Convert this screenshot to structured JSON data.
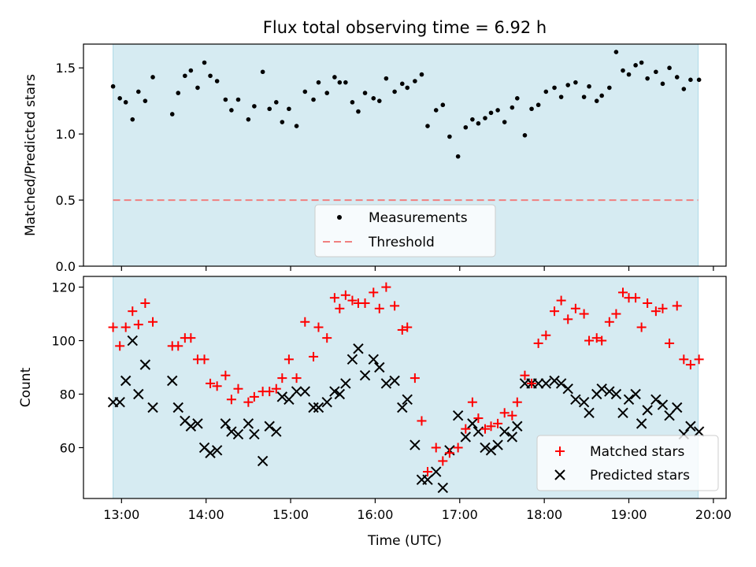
{
  "figure": {
    "title": "Flux total observing time = 6.92 h",
    "colors": {
      "band": "#add8e6",
      "measurement": "#000000",
      "threshold": "#f08080",
      "matched": "#ff0000",
      "predicted": "#000000"
    }
  },
  "chart_data": [
    {
      "type": "scatter",
      "title": "Flux total observing time = 6.92 h",
      "xlabel": "",
      "ylabel": "Matched/Predicted stars",
      "x_unit": "hours UTC",
      "xlim": [
        12.55,
        20.15
      ],
      "ylim": [
        0.0,
        1.68
      ],
      "yticks": [
        0.0,
        0.5,
        1.0,
        1.5
      ],
      "ytick_labels": [
        "0.0",
        "0.5",
        "1.0",
        "1.5"
      ],
      "shaded_span": [
        12.9,
        19.82
      ],
      "legend": {
        "placement": "lower center",
        "entries": [
          "Measurements",
          "Threshold"
        ]
      },
      "threshold": {
        "name": "Threshold",
        "value": 0.5,
        "x_range": [
          12.9,
          19.82
        ]
      },
      "series": [
        {
          "name": "Measurements",
          "marker": "dot",
          "x": [
            12.9,
            12.98,
            13.05,
            13.13,
            13.2,
            13.28,
            13.37,
            13.6,
            13.67,
            13.75,
            13.82,
            13.9,
            13.98,
            14.05,
            14.13,
            14.23,
            14.3,
            14.38,
            14.5,
            14.57,
            14.67,
            14.75,
            14.83,
            14.9,
            14.98,
            15.07,
            15.17,
            15.27,
            15.33,
            15.43,
            15.52,
            15.58,
            15.65,
            15.73,
            15.8,
            15.88,
            15.98,
            16.05,
            16.13,
            16.23,
            16.32,
            16.38,
            16.47,
            16.55,
            16.62,
            16.72,
            16.8,
            16.88,
            16.98,
            17.07,
            17.15,
            17.22,
            17.3,
            17.37,
            17.45,
            17.53,
            17.62,
            17.68,
            17.77,
            17.85,
            17.93,
            18.02,
            18.12,
            18.2,
            18.28,
            18.37,
            18.47,
            18.53,
            18.62,
            18.68,
            18.77,
            18.85,
            18.93,
            19.0,
            19.08,
            19.15,
            19.22,
            19.32,
            19.4,
            19.48,
            19.57,
            19.65,
            19.73,
            19.83
          ],
          "y": [
            1.36,
            1.27,
            1.24,
            1.11,
            1.32,
            1.25,
            1.43,
            1.15,
            1.31,
            1.44,
            1.48,
            1.35,
            1.54,
            1.44,
            1.4,
            1.26,
            1.18,
            1.26,
            1.11,
            1.21,
            1.47,
            1.19,
            1.24,
            1.09,
            1.19,
            1.06,
            1.32,
            1.26,
            1.39,
            1.31,
            1.43,
            1.39,
            1.39,
            1.24,
            1.17,
            1.31,
            1.27,
            1.25,
            1.42,
            1.32,
            1.38,
            1.35,
            1.4,
            1.45,
            1.06,
            1.18,
            1.22,
            0.98,
            0.83,
            1.05,
            1.11,
            1.08,
            1.12,
            1.16,
            1.18,
            1.09,
            1.2,
            1.27,
            0.99,
            1.19,
            1.22,
            1.32,
            1.35,
            1.28,
            1.37,
            1.39,
            1.28,
            1.36,
            1.25,
            1.29,
            1.35,
            1.62,
            1.48,
            1.45,
            1.52,
            1.54,
            1.42,
            1.47,
            1.38,
            1.5,
            1.43,
            1.34,
            1.41,
            1.41
          ]
        }
      ]
    },
    {
      "type": "scatter",
      "xlabel": "Time (UTC)",
      "ylabel": "Count",
      "x_unit": "hours UTC",
      "xlim": [
        12.55,
        20.15
      ],
      "ylim": [
        41.0,
        124.0
      ],
      "xticks": [
        13,
        14,
        15,
        16,
        17,
        18,
        19,
        20
      ],
      "xtick_labels": [
        "13:00",
        "14:00",
        "15:00",
        "16:00",
        "17:00",
        "18:00",
        "19:00",
        "20:00"
      ],
      "yticks": [
        60,
        80,
        100,
        120
      ],
      "ytick_labels": [
        "60",
        "80",
        "100",
        "120"
      ],
      "shaded_span": [
        12.9,
        19.82
      ],
      "legend": {
        "placement": "lower right",
        "entries": [
          "Matched stars",
          "Predicted stars"
        ]
      },
      "series": [
        {
          "name": "Matched stars",
          "marker": "plus",
          "x": [
            12.9,
            12.98,
            13.05,
            13.13,
            13.2,
            13.28,
            13.37,
            13.6,
            13.67,
            13.75,
            13.82,
            13.9,
            13.98,
            14.05,
            14.13,
            14.23,
            14.3,
            14.38,
            14.5,
            14.57,
            14.67,
            14.75,
            14.83,
            14.9,
            14.98,
            15.07,
            15.17,
            15.27,
            15.33,
            15.43,
            15.52,
            15.58,
            15.65,
            15.73,
            15.8,
            15.88,
            15.98,
            16.05,
            16.13,
            16.23,
            16.32,
            16.38,
            16.47,
            16.55,
            16.62,
            16.72,
            16.8,
            16.88,
            16.98,
            17.07,
            17.15,
            17.22,
            17.3,
            17.37,
            17.45,
            17.53,
            17.62,
            17.68,
            17.77,
            17.85,
            17.93,
            18.02,
            18.12,
            18.2,
            18.28,
            18.37,
            18.47,
            18.53,
            18.62,
            18.68,
            18.77,
            18.85,
            18.93,
            19.0,
            19.08,
            19.15,
            19.22,
            19.32,
            19.4,
            19.48,
            19.57,
            19.65,
            19.73,
            19.83
          ],
          "y": [
            105,
            98,
            105,
            111,
            106,
            114,
            107,
            98,
            98,
            101,
            101,
            93,
            93,
            84,
            83,
            87,
            78,
            82,
            77,
            79,
            81,
            81,
            82,
            86,
            93,
            86,
            107,
            94,
            105,
            101,
            116,
            112,
            117,
            115,
            114,
            114,
            118,
            112,
            120,
            113,
            104,
            105,
            86,
            70,
            51,
            60,
            55,
            58,
            60,
            67,
            77,
            71,
            67,
            68,
            69,
            73,
            72,
            77,
            87,
            84,
            99,
            102,
            111,
            115,
            108,
            112,
            110,
            100,
            101,
            100,
            107,
            110,
            118,
            116,
            116,
            105,
            114,
            111,
            112,
            99,
            113,
            93,
            91,
            93
          ]
        },
        {
          "name": "Predicted stars",
          "marker": "x",
          "x": [
            12.9,
            12.98,
            13.05,
            13.13,
            13.2,
            13.28,
            13.37,
            13.6,
            13.67,
            13.75,
            13.82,
            13.9,
            13.98,
            14.05,
            14.13,
            14.23,
            14.3,
            14.38,
            14.5,
            14.57,
            14.67,
            14.75,
            14.83,
            14.9,
            14.98,
            15.07,
            15.17,
            15.27,
            15.33,
            15.43,
            15.52,
            15.58,
            15.65,
            15.73,
            15.8,
            15.88,
            15.98,
            16.05,
            16.13,
            16.23,
            16.32,
            16.38,
            16.47,
            16.55,
            16.62,
            16.72,
            16.8,
            16.88,
            16.98,
            17.07,
            17.15,
            17.22,
            17.3,
            17.37,
            17.45,
            17.53,
            17.62,
            17.68,
            17.77,
            17.85,
            17.93,
            18.02,
            18.12,
            18.2,
            18.28,
            18.37,
            18.47,
            18.53,
            18.62,
            18.68,
            18.77,
            18.85,
            18.93,
            19.0,
            19.08,
            19.15,
            19.22,
            19.32,
            19.4,
            19.48,
            19.57,
            19.65,
            19.73,
            19.83
          ],
          "y": [
            77,
            77,
            85,
            100,
            80,
            91,
            75,
            85,
            75,
            70,
            68,
            69,
            60,
            58,
            59,
            69,
            66,
            65,
            69,
            65,
            55,
            68,
            66,
            79,
            78,
            81,
            81,
            75,
            75,
            77,
            81,
            80,
            84,
            93,
            97,
            87,
            93,
            90,
            84,
            85,
            75,
            78,
            61,
            48,
            48,
            51,
            45,
            59,
            72,
            64,
            69,
            66,
            60,
            59,
            61,
            66,
            64,
            68,
            84,
            84,
            84,
            84,
            85,
            84,
            82,
            78,
            77,
            73,
            80,
            82,
            81,
            80,
            73,
            78,
            80,
            69,
            74,
            78,
            76,
            72,
            75,
            65,
            68,
            66
          ]
        }
      ]
    }
  ]
}
